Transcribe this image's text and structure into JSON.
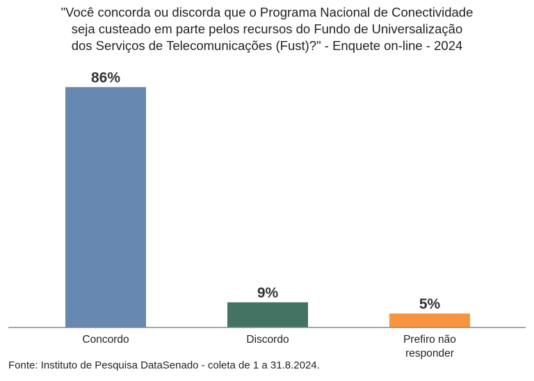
{
  "chart_data": {
    "type": "bar",
    "title_lines": [
      "\"Você concorda ou discorda que o Programa Nacional de Conectividade",
      "seja custeado em parte pelos recursos do Fundo de Universalização",
      "dos Serviços de Telecomunicações (Fust)?\" - Enquete on-line - 2024"
    ],
    "categories": [
      [
        "Concordo"
      ],
      [
        "Discordo"
      ],
      [
        "Prefiro não",
        "responder"
      ]
    ],
    "values": [
      86,
      9,
      5
    ],
    "value_labels": [
      "86%",
      "9%",
      "5%"
    ],
    "colors": [
      "#6788B1",
      "#437362",
      "#F7943E"
    ],
    "ylim": [
      0,
      100
    ],
    "grid": false,
    "legend": "none"
  },
  "source": "Fonte: Instituto de Pesquisa DataSenado - coleta de 1 a 31.8.2024."
}
